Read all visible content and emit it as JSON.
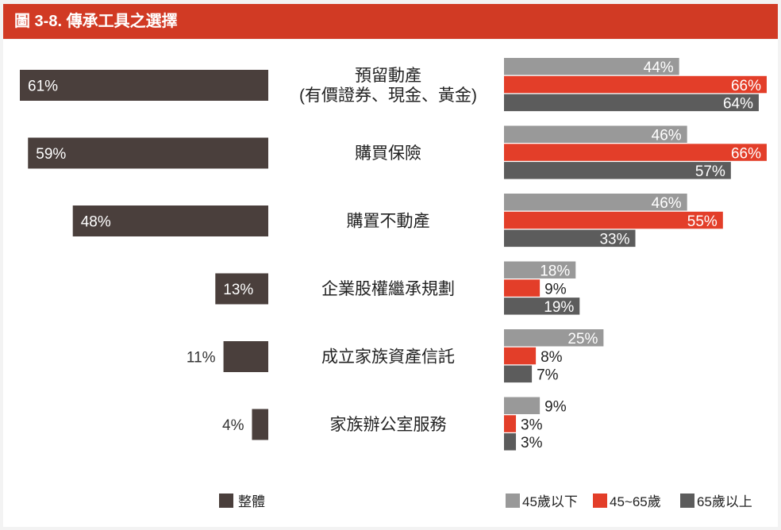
{
  "title": "圖 3-8. 傳承工具之選擇",
  "chart_data": [
    {
      "type": "bar",
      "orientation": "horizontal",
      "direction": "right-to-left",
      "categories": [
        "預留動產\n(有價證券、現金、黃金)",
        "購買保險",
        "購置不動產",
        "企業股權繼承規劃",
        "成立家族資產信託",
        "家族辦公室服務"
      ],
      "series": [
        {
          "name": "整體",
          "values": [
            61,
            59,
            48,
            13,
            11,
            4
          ],
          "color": "#4a3f3c"
        }
      ],
      "value_suffix": "%",
      "xlim": [
        0,
        61
      ],
      "legend_position": "bottom-left",
      "grid": false
    },
    {
      "type": "bar",
      "orientation": "horizontal",
      "categories": [
        "預留動產\n(有價證券、現金、黃金)",
        "購買保險",
        "購置不動產",
        "企業股權繼承規劃",
        "成立家族資產信託",
        "家族辦公室服務"
      ],
      "series": [
        {
          "name": "45歲以下",
          "values": [
            44,
            46,
            46,
            18,
            25,
            9
          ],
          "color": "#999999"
        },
        {
          "name": "45~65歲",
          "values": [
            66,
            66,
            55,
            9,
            8,
            3
          ],
          "color": "#e33e29"
        },
        {
          "name": "65歲以上",
          "values": [
            64,
            57,
            33,
            19,
            7,
            3
          ],
          "color": "#5c5c5c"
        }
      ],
      "value_suffix": "%",
      "xlim": [
        0,
        66
      ],
      "legend_position": "bottom-right",
      "grid": false
    }
  ]
}
